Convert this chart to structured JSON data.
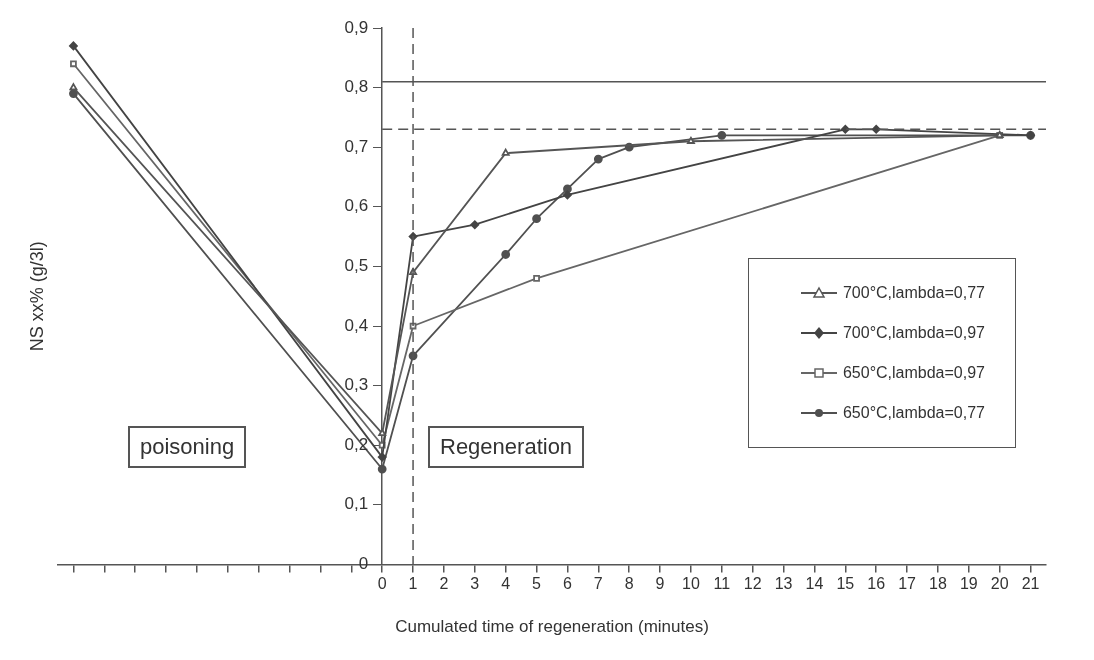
{
  "chart_data": {
    "type": "line",
    "xlabel": "Cumulated time of regeneration (minutes)",
    "ylabel": "NS xx% (g/3l)",
    "xlim": [
      -10.5,
      21.5
    ],
    "ylim": [
      0,
      0.9
    ],
    "xticks": [
      {
        "value": -10,
        "label": null
      },
      {
        "value": -9,
        "label": null
      },
      {
        "value": -8,
        "label": null
      },
      {
        "value": -7,
        "label": null
      },
      {
        "value": -6,
        "label": null
      },
      {
        "value": -5,
        "label": null
      },
      {
        "value": -4,
        "label": null
      },
      {
        "value": -3,
        "label": null
      },
      {
        "value": -2,
        "label": null
      },
      {
        "value": -1,
        "label": null
      },
      0,
      1,
      2,
      3,
      4,
      5,
      6,
      7,
      8,
      9,
      10,
      11,
      12,
      13,
      14,
      15,
      16,
      17,
      18,
      19,
      20,
      21
    ],
    "yticks": [
      0,
      {
        "value": 0.1,
        "label": "0,1"
      },
      {
        "value": 0.2,
        "label": "0,2"
      },
      {
        "value": 0.3,
        "label": "0,3"
      },
      {
        "value": 0.4,
        "label": "0,4"
      },
      {
        "value": 0.5,
        "label": "0,5"
      },
      {
        "value": 0.6,
        "label": "0,6"
      },
      {
        "value": 0.7,
        "label": "0,7"
      },
      {
        "value": 0.8,
        "label": "0,8"
      },
      {
        "value": 0.9,
        "label": "0,9"
      }
    ],
    "grid": false,
    "legend": "right",
    "line_style": "solid",
    "series": [
      {
        "name": "700°C,lambda=0,77",
        "color": "#555555",
        "marker": "triangle",
        "x": [
          -10,
          0,
          1,
          4,
          10,
          20
        ],
        "values": [
          0.8,
          0.22,
          0.49,
          0.69,
          0.71,
          0.72
        ]
      },
      {
        "name": "700°C,lambda=0,97",
        "color": "#444444",
        "marker": "diamond",
        "x": [
          -10,
          0,
          1,
          3,
          6,
          15,
          16,
          21
        ],
        "values": [
          0.87,
          0.18,
          0.55,
          0.57,
          0.62,
          0.73,
          0.73,
          0.72
        ]
      },
      {
        "name": "650°C,lambda=0,97",
        "color": "#666666",
        "marker": "square",
        "x": [
          -10,
          0,
          1,
          5,
          20
        ],
        "values": [
          0.84,
          0.2,
          0.4,
          0.48,
          0.72
        ]
      },
      {
        "name": "650°C,lambda=0,77",
        "color": "#505050",
        "marker": "circle",
        "x": [
          -10,
          0,
          1,
          4,
          5,
          6,
          7,
          8,
          11,
          21
        ],
        "values": [
          0.79,
          0.16,
          0.35,
          0.52,
          0.58,
          0.63,
          0.68,
          0.7,
          0.72,
          0.72
        ]
      }
    ],
    "ref_lines": [
      {
        "axis": "y",
        "value": 0.81,
        "color": "#555555",
        "line_style": "solid"
      },
      {
        "axis": "y",
        "value": 0.73,
        "color": "#555555",
        "line_style": "dashed"
      },
      {
        "axis": "x",
        "value": 1,
        "color": "#555555",
        "line_style": "dashed"
      }
    ],
    "annotations": [
      "poisoning",
      "Regeneration"
    ]
  }
}
